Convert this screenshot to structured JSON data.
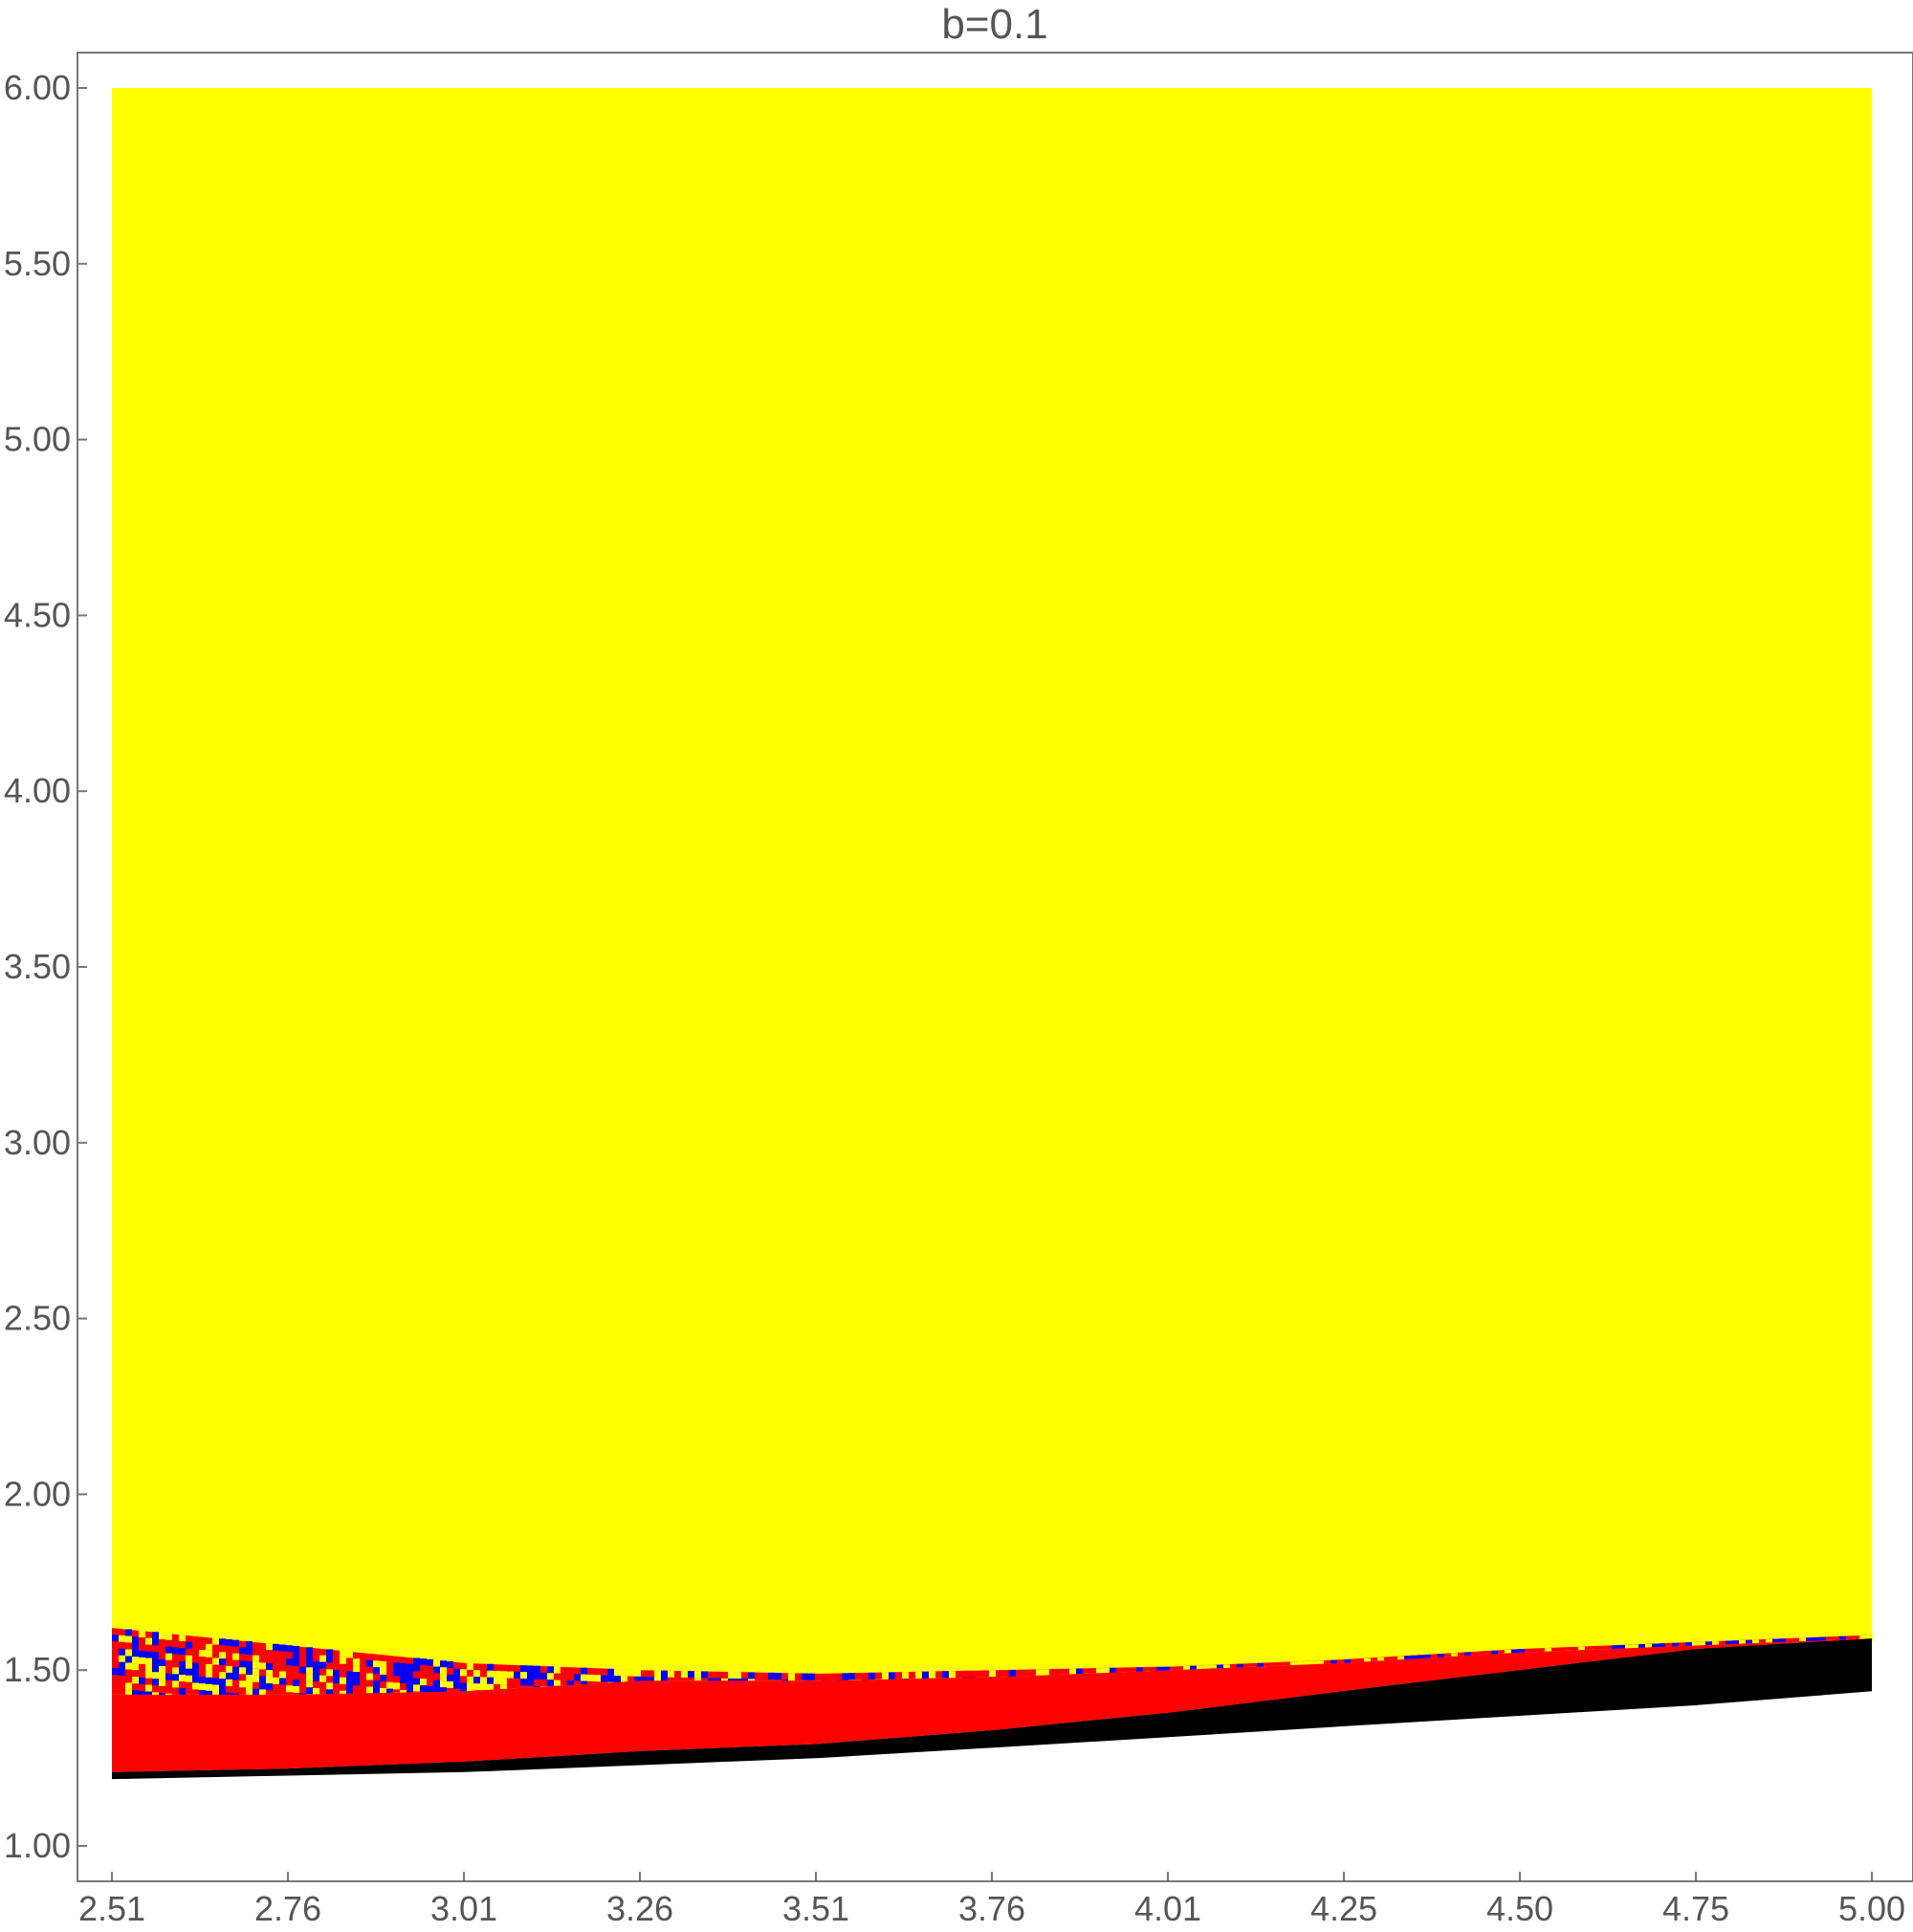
{
  "chart_data": {
    "type": "heatmap",
    "title": "b=0.1",
    "xlabel": "",
    "ylabel": "",
    "xlim": [
      2.51,
      5.0
    ],
    "ylim": [
      1.0,
      6.0
    ],
    "x_ticks": [
      "2.51",
      "2.76",
      "3.01",
      "3.26",
      "3.51",
      "3.76",
      "4.01",
      "4.25",
      "4.50",
      "4.75",
      "5.00"
    ],
    "y_ticks": [
      "1.00",
      "1.50",
      "2.00",
      "2.50",
      "3.00",
      "3.50",
      "4.00",
      "4.50",
      "5.00",
      "5.50",
      "6.00"
    ],
    "grid": false,
    "colors": {
      "yellow": "#ffff00",
      "red": "#ff0000",
      "blue": "#0000ff",
      "black": "#000000",
      "white": "#ffffff"
    },
    "regions": [
      {
        "color": "yellow",
        "description_points_x": [
          2.51,
          5.0
        ],
        "bottom_boundary": [
          {
            "x": 2.51,
            "y": 1.62
          },
          {
            "x": 2.76,
            "y": 1.57
          },
          {
            "x": 3.01,
            "y": 1.52
          },
          {
            "x": 3.26,
            "y": 1.5
          },
          {
            "x": 3.51,
            "y": 1.49
          },
          {
            "x": 3.76,
            "y": 1.5
          },
          {
            "x": 4.01,
            "y": 1.51
          },
          {
            "x": 4.25,
            "y": 1.53
          },
          {
            "x": 4.5,
            "y": 1.56
          },
          {
            "x": 4.75,
            "y": 1.58
          },
          {
            "x": 5.0,
            "y": 1.6
          }
        ],
        "top": 6.0
      },
      {
        "color": "mixed",
        "mix": [
          "red",
          "blue",
          "yellow"
        ],
        "top_boundary": [
          {
            "x": 2.51,
            "y": 1.62
          },
          {
            "x": 2.76,
            "y": 1.57
          },
          {
            "x": 3.01,
            "y": 1.52
          },
          {
            "x": 3.26,
            "y": 1.5
          },
          {
            "x": 3.51,
            "y": 1.49
          },
          {
            "x": 3.76,
            "y": 1.5
          },
          {
            "x": 4.01,
            "y": 1.51
          },
          {
            "x": 4.25,
            "y": 1.53
          },
          {
            "x": 4.5,
            "y": 1.56
          },
          {
            "x": 4.75,
            "y": 1.58
          },
          {
            "x": 5.0,
            "y": 1.6
          }
        ],
        "bottom_boundary": [
          {
            "x": 2.51,
            "y": 1.43
          },
          {
            "x": 2.76,
            "y": 1.43
          },
          {
            "x": 3.01,
            "y": 1.44
          },
          {
            "x": 3.26,
            "y": 1.47
          },
          {
            "x": 3.51,
            "y": 1.47
          },
          {
            "x": 3.76,
            "y": 1.48
          },
          {
            "x": 4.01,
            "y": 1.5
          },
          {
            "x": 4.25,
            "y": 1.52
          },
          {
            "x": 4.5,
            "y": 1.55
          },
          {
            "x": 4.75,
            "y": 1.57
          },
          {
            "x": 5.0,
            "y": 1.59
          }
        ]
      },
      {
        "color": "red",
        "top_boundary": [
          {
            "x": 2.51,
            "y": 1.43
          },
          {
            "x": 2.76,
            "y": 1.43
          },
          {
            "x": 3.01,
            "y": 1.44
          },
          {
            "x": 3.26,
            "y": 1.47
          },
          {
            "x": 3.51,
            "y": 1.47
          },
          {
            "x": 3.76,
            "y": 1.48
          },
          {
            "x": 4.01,
            "y": 1.5
          },
          {
            "x": 4.25,
            "y": 1.52
          },
          {
            "x": 4.5,
            "y": 1.55
          },
          {
            "x": 4.75,
            "y": 1.57
          },
          {
            "x": 5.0,
            "y": 1.59
          }
        ],
        "bottom_boundary": [
          {
            "x": 2.51,
            "y": 1.21
          },
          {
            "x": 2.76,
            "y": 1.22
          },
          {
            "x": 3.01,
            "y": 1.24
          },
          {
            "x": 3.26,
            "y": 1.27
          },
          {
            "x": 3.51,
            "y": 1.29
          },
          {
            "x": 3.76,
            "y": 1.33
          },
          {
            "x": 4.01,
            "y": 1.38
          },
          {
            "x": 4.25,
            "y": 1.44
          },
          {
            "x": 4.5,
            "y": 1.5
          },
          {
            "x": 4.75,
            "y": 1.56
          },
          {
            "x": 5.0,
            "y": 1.59
          }
        ]
      },
      {
        "color": "black",
        "top_boundary": [
          {
            "x": 2.51,
            "y": 1.21
          },
          {
            "x": 2.76,
            "y": 1.22
          },
          {
            "x": 3.01,
            "y": 1.24
          },
          {
            "x": 3.26,
            "y": 1.27
          },
          {
            "x": 3.51,
            "y": 1.29
          },
          {
            "x": 3.76,
            "y": 1.33
          },
          {
            "x": 4.01,
            "y": 1.38
          },
          {
            "x": 4.25,
            "y": 1.44
          },
          {
            "x": 4.5,
            "y": 1.5
          },
          {
            "x": 4.75,
            "y": 1.56
          },
          {
            "x": 5.0,
            "y": 1.59
          }
        ],
        "bottom_boundary": [
          {
            "x": 2.51,
            "y": 1.19
          },
          {
            "x": 2.76,
            "y": 1.2
          },
          {
            "x": 3.01,
            "y": 1.21
          },
          {
            "x": 3.26,
            "y": 1.23
          },
          {
            "x": 3.51,
            "y": 1.25
          },
          {
            "x": 3.76,
            "y": 1.28
          },
          {
            "x": 4.01,
            "y": 1.31
          },
          {
            "x": 4.25,
            "y": 1.34
          },
          {
            "x": 4.5,
            "y": 1.37
          },
          {
            "x": 4.75,
            "y": 1.4
          },
          {
            "x": 5.0,
            "y": 1.44
          }
        ]
      }
    ]
  }
}
